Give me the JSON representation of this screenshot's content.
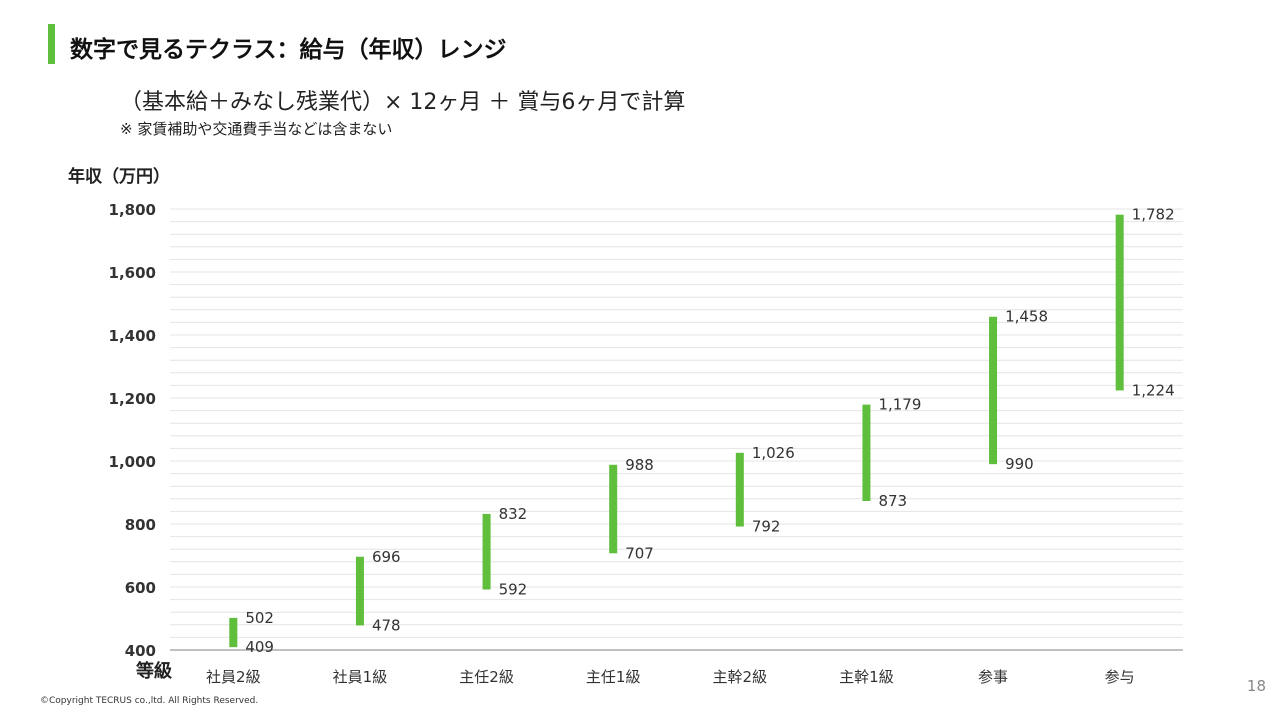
{
  "header": {
    "title": "数字で見るテクラス：給与（年収）レンジ",
    "formula": "（基本給＋みなし残業代）× 12ヶ月 ＋ 賞与6ヶ月で計算",
    "note": "※ 家賃補助や交通費手当などは含まない"
  },
  "chart_data": {
    "type": "bar",
    "subtype": "floating-range",
    "ylabel": "年収（万円）",
    "xlabel": "等級",
    "ylim": [
      400,
      1800
    ],
    "yticks": [
      "400",
      "600",
      "800",
      "1,000",
      "1,200",
      "1,400",
      "1,600",
      "1,800"
    ],
    "ytick_values": [
      400,
      600,
      800,
      1000,
      1200,
      1400,
      1600,
      1800
    ],
    "grid": true,
    "bar_color": "#5fbe3c",
    "categories": [
      "社員2級",
      "社員1級",
      "主任2級",
      "主任1級",
      "主幹2級",
      "主幹1級",
      "参事",
      "参与"
    ],
    "low": [
      409,
      478,
      592,
      707,
      792,
      873,
      990,
      1224
    ],
    "high": [
      502,
      696,
      832,
      988,
      1026,
      1179,
      1458,
      1782
    ],
    "low_labels": [
      "409",
      "478",
      "592",
      "707",
      "792",
      "873",
      "990",
      "1,224"
    ],
    "high_labels": [
      "502",
      "696",
      "832",
      "988",
      "1,026",
      "1,179",
      "1,458",
      "1,782"
    ]
  },
  "footer": {
    "copyright": "©Copyright TECRUS co.,ltd. All Rights Reserved.",
    "page_number": "18"
  }
}
